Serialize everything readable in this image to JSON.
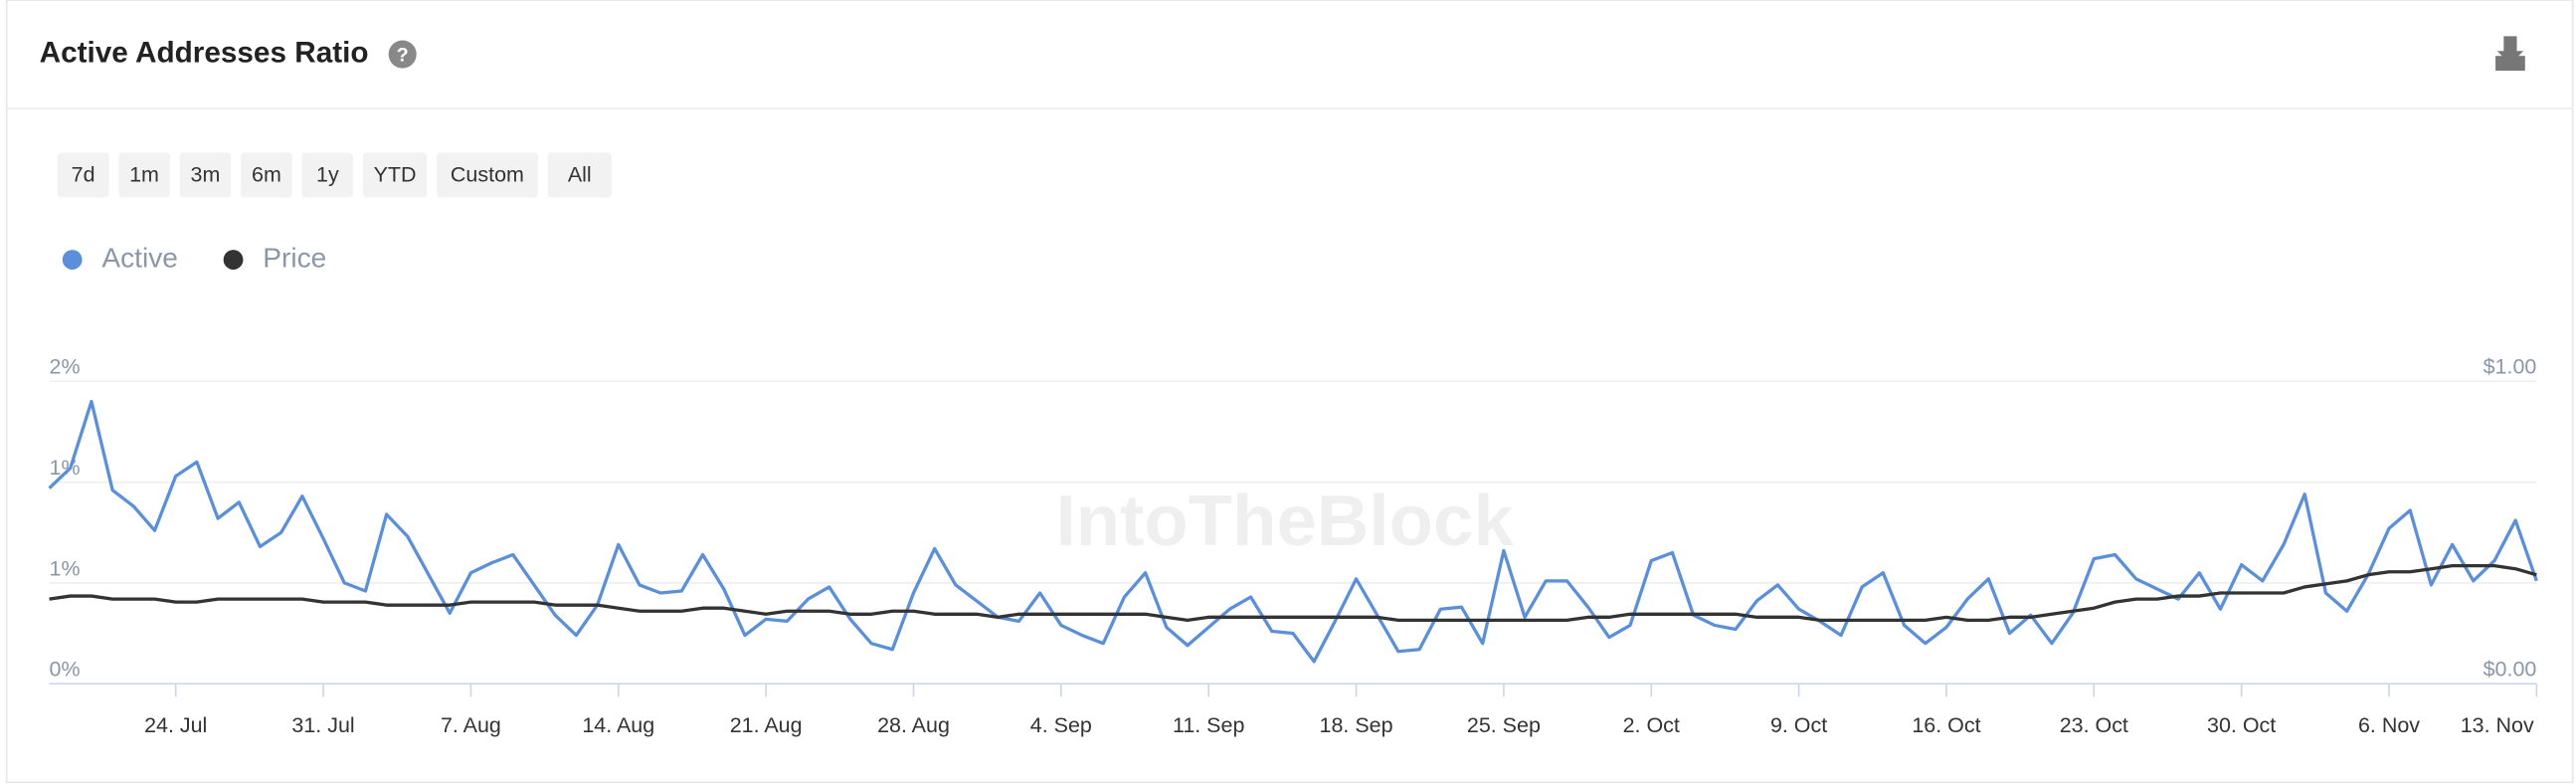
{
  "chart_data": {
    "type": "line",
    "title": "Active Addresses Ratio",
    "categories": [
      null,
      null,
      null,
      null,
      null,
      null,
      "24. Jul",
      null,
      null,
      null,
      null,
      null,
      null,
      "31. Jul",
      null,
      null,
      null,
      null,
      null,
      null,
      "7. Aug",
      null,
      null,
      null,
      null,
      null,
      null,
      "14. Aug",
      null,
      null,
      null,
      null,
      null,
      null,
      "21. Aug",
      null,
      null,
      null,
      null,
      null,
      null,
      "28. Aug",
      null,
      null,
      null,
      null,
      null,
      null,
      "4. Sep",
      null,
      null,
      null,
      null,
      null,
      null,
      "11. Sep",
      null,
      null,
      null,
      null,
      null,
      null,
      "18. Sep",
      null,
      null,
      null,
      null,
      null,
      null,
      "25. Sep",
      null,
      null,
      null,
      null,
      null,
      null,
      "2. Oct",
      null,
      null,
      null,
      null,
      null,
      null,
      "9. Oct",
      null,
      null,
      null,
      null,
      null,
      null,
      "16. Oct",
      null,
      null,
      null,
      null,
      null,
      null,
      "23. Oct",
      null,
      null,
      null,
      null,
      null,
      null,
      "30. Oct",
      null,
      null,
      null,
      null,
      null,
      null,
      "6. Nov",
      null,
      null,
      null,
      null,
      null,
      null,
      "13. Nov"
    ],
    "series": [
      {
        "name": "Active",
        "color": "#5b8fd9",
        "axis": "y",
        "values": [
          0.97,
          1.07,
          1.4,
          0.96,
          0.88,
          0.76,
          1.03,
          1.1,
          0.82,
          0.9,
          0.68,
          0.75,
          0.93,
          0.72,
          0.5,
          0.46,
          0.84,
          0.73,
          0.54,
          0.35,
          0.55,
          0.6,
          0.64,
          0.49,
          0.34,
          0.24,
          0.39,
          0.69,
          0.49,
          0.45,
          0.46,
          0.64,
          0.47,
          0.24,
          0.32,
          0.31,
          0.42,
          0.48,
          0.32,
          0.2,
          0.17,
          0.45,
          0.67,
          0.49,
          0.41,
          0.33,
          0.31,
          0.45,
          0.29,
          0.24,
          0.2,
          0.43,
          0.55,
          0.28,
          0.19,
          0.28,
          0.37,
          0.43,
          0.26,
          0.25,
          0.11,
          0.31,
          0.52,
          0.34,
          0.16,
          0.17,
          0.37,
          0.38,
          0.2,
          0.66,
          0.33,
          0.51,
          0.51,
          0.38,
          0.23,
          0.29,
          0.61,
          0.65,
          0.34,
          0.29,
          0.27,
          0.41,
          0.49,
          0.37,
          0.31,
          0.24,
          0.48,
          0.55,
          0.29,
          0.2,
          0.28,
          0.42,
          0.52,
          0.25,
          0.34,
          0.2,
          0.35,
          0.62,
          0.64,
          0.52,
          0.47,
          0.42,
          0.55,
          0.37,
          0.59,
          0.51,
          0.69,
          0.94,
          0.45,
          0.36,
          0.54,
          0.77,
          0.86,
          0.49,
          0.69,
          0.51,
          0.61,
          0.81,
          0.51
        ]
      },
      {
        "name": "Price",
        "color": "#333333",
        "axis": "y2",
        "values": [
          0.28,
          0.29,
          0.29,
          0.28,
          0.28,
          0.28,
          0.27,
          0.27,
          0.28,
          0.28,
          0.28,
          0.28,
          0.28,
          0.27,
          0.27,
          0.27,
          0.26,
          0.26,
          0.26,
          0.26,
          0.27,
          0.27,
          0.27,
          0.27,
          0.26,
          0.26,
          0.26,
          0.25,
          0.24,
          0.24,
          0.24,
          0.25,
          0.25,
          0.24,
          0.23,
          0.24,
          0.24,
          0.24,
          0.23,
          0.23,
          0.24,
          0.24,
          0.23,
          0.23,
          0.23,
          0.22,
          0.23,
          0.23,
          0.23,
          0.23,
          0.23,
          0.23,
          0.23,
          0.22,
          0.21,
          0.22,
          0.22,
          0.22,
          0.22,
          0.22,
          0.22,
          0.22,
          0.22,
          0.22,
          0.21,
          0.21,
          0.21,
          0.21,
          0.21,
          0.21,
          0.21,
          0.21,
          0.21,
          0.22,
          0.22,
          0.23,
          0.23,
          0.23,
          0.23,
          0.23,
          0.23,
          0.22,
          0.22,
          0.22,
          0.21,
          0.21,
          0.21,
          0.21,
          0.21,
          0.21,
          0.22,
          0.21,
          0.21,
          0.22,
          0.22,
          0.23,
          0.24,
          0.25,
          0.27,
          0.28,
          0.28,
          0.29,
          0.29,
          0.3,
          0.3,
          0.3,
          0.3,
          0.32,
          0.33,
          0.34,
          0.36,
          0.37,
          0.37,
          0.38,
          0.39,
          0.39,
          0.39,
          0.38,
          0.36
        ]
      }
    ],
    "ylim": [
      0,
      1.5
    ],
    "yticks": [
      {
        "value": 0,
        "label": "0%"
      },
      {
        "value": 0.5,
        "label": "1%"
      },
      {
        "value": 1,
        "label": "1%"
      },
      {
        "value": 1.5,
        "label": "2%"
      }
    ],
    "y2lim": [
      0,
      1
    ],
    "y2ticks": [
      {
        "value": 0,
        "label": "$0.00"
      },
      {
        "value": 1,
        "label": "$1.00"
      }
    ],
    "grid": true,
    "legend": "top-left"
  },
  "buttons": [
    "7d",
    "1m",
    "3m",
    "6m",
    "1y",
    "YTD",
    "Custom",
    "All"
  ],
  "watermark": "IntoTheBlock"
}
